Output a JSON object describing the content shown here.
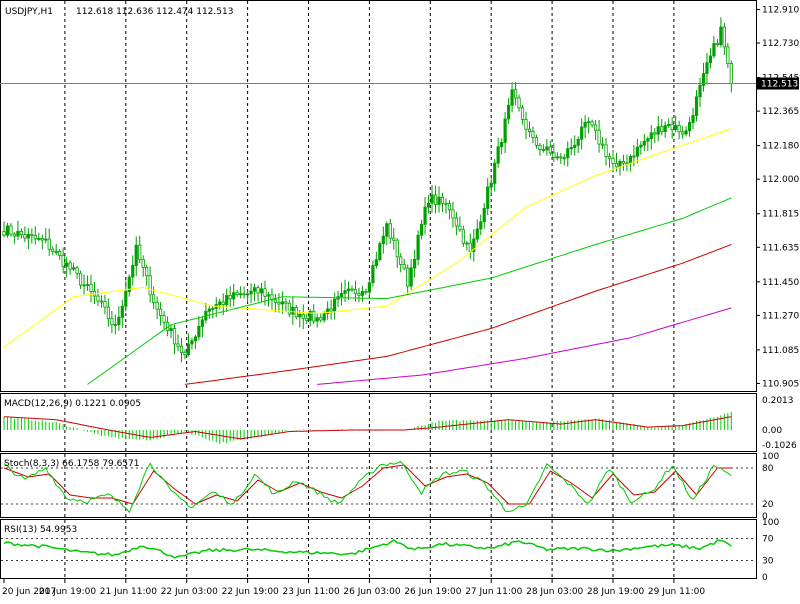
{
  "chart_data": [
    {
      "type": "candlestick",
      "symbol_label": "USDJPY,H1",
      "ohlc_label": "112.618 112.636 112.474 112.513",
      "current_price_label": "112.513",
      "ylim": [
        110.87,
        112.95
      ],
      "y_ticks": [
        "112.910",
        "112.730",
        "112.545",
        "112.365",
        "112.180",
        "112.000",
        "111.815",
        "111.635",
        "111.450",
        "111.270",
        "111.085",
        "110.905"
      ],
      "x_ticks": [
        "20 Jun 2017",
        "20 Jun 19:00",
        "21 Jun 11:00",
        "22 Jun 03:00",
        "22 Jun 19:00",
        "23 Jun 11:00",
        "26 Jun 03:00",
        "26 Jun 19:00",
        "27 Jun 11:00",
        "28 Jun 03:00",
        "28 Jun 19:00",
        "29 Jun 11:00"
      ],
      "colors": {
        "up": "#00a000",
        "down": "#00a000",
        "ma_fast": "#ffff00",
        "ma_mid": "#00cc00",
        "ma_slow": "#cc0000",
        "ma_slowest": "#cc00cc"
      },
      "close_anchors": [
        [
          0,
          111.73
        ],
        [
          12,
          111.66
        ],
        [
          20,
          111.5
        ],
        [
          28,
          111.32
        ],
        [
          32,
          111.2
        ],
        [
          38,
          111.62
        ],
        [
          44,
          111.3
        ],
        [
          52,
          111.05
        ],
        [
          58,
          111.3
        ],
        [
          66,
          111.37
        ],
        [
          74,
          111.4
        ],
        [
          82,
          111.3
        ],
        [
          90,
          111.25
        ],
        [
          98,
          111.38
        ],
        [
          104,
          111.42
        ],
        [
          110,
          111.75
        ],
        [
          116,
          111.45
        ],
        [
          122,
          111.9
        ],
        [
          128,
          111.85
        ],
        [
          134,
          111.6
        ],
        [
          140,
          112.0
        ],
        [
          146,
          112.45
        ],
        [
          152,
          112.2
        ],
        [
          160,
          112.1
        ],
        [
          168,
          112.3
        ],
        [
          176,
          112.05
        ],
        [
          184,
          112.2
        ],
        [
          190,
          112.3
        ],
        [
          196,
          112.25
        ],
        [
          202,
          112.6
        ],
        [
          206,
          112.8
        ],
        [
          209,
          112.51
        ]
      ],
      "ma_fast_anchors": [
        [
          0,
          111.1
        ],
        [
          20,
          111.37
        ],
        [
          40,
          111.42
        ],
        [
          60,
          111.32
        ],
        [
          90,
          111.28
        ],
        [
          110,
          111.32
        ],
        [
          130,
          111.55
        ],
        [
          150,
          111.85
        ],
        [
          170,
          112.02
        ],
        [
          190,
          112.15
        ],
        [
          209,
          112.27
        ]
      ],
      "ma_mid_anchors": [
        [
          24,
          110.9
        ],
        [
          48,
          111.22
        ],
        [
          80,
          111.37
        ],
        [
          110,
          111.36
        ],
        [
          140,
          111.47
        ],
        [
          170,
          111.65
        ],
        [
          195,
          111.79
        ],
        [
          209,
          111.9
        ]
      ],
      "ma_slow_anchors": [
        [
          52,
          110.9
        ],
        [
          80,
          110.97
        ],
        [
          110,
          111.05
        ],
        [
          140,
          111.2
        ],
        [
          170,
          111.4
        ],
        [
          195,
          111.55
        ],
        [
          209,
          111.65
        ]
      ],
      "ma_slowest_anchors": [
        [
          90,
          110.9
        ],
        [
          120,
          110.95
        ],
        [
          150,
          111.04
        ],
        [
          180,
          111.15
        ],
        [
          209,
          111.31
        ]
      ]
    },
    {
      "type": "histogram",
      "label": "MACD(12,26,9) 0.1221 0.0905",
      "ylim": [
        -0.135,
        0.23
      ],
      "y_ticks": [
        "0.2013",
        "0.00",
        "-0.1026"
      ],
      "signal_color": "#cc0000",
      "hist_color": "#00cc00",
      "macd_anchors": [
        [
          0,
          0.09
        ],
        [
          15,
          0.05
        ],
        [
          30,
          -0.05
        ],
        [
          42,
          -0.07
        ],
        [
          52,
          -0.01
        ],
        [
          62,
          -0.09
        ],
        [
          70,
          -0.06
        ],
        [
          82,
          0.0
        ],
        [
          100,
          0.0
        ],
        [
          115,
          0.0
        ],
        [
          125,
          0.06
        ],
        [
          145,
          0.07
        ],
        [
          155,
          0.05
        ],
        [
          170,
          0.08
        ],
        [
          185,
          0.02
        ],
        [
          195,
          0.03
        ],
        [
          209,
          0.12
        ]
      ],
      "signal_anchors": [
        [
          0,
          0.09
        ],
        [
          15,
          0.07
        ],
        [
          30,
          0.0
        ],
        [
          42,
          -0.05
        ],
        [
          55,
          -0.01
        ],
        [
          68,
          -0.06
        ],
        [
          82,
          -0.01
        ],
        [
          100,
          0.0
        ],
        [
          115,
          0.0
        ],
        [
          125,
          0.02
        ],
        [
          145,
          0.07
        ],
        [
          160,
          0.04
        ],
        [
          170,
          0.07
        ],
        [
          185,
          0.02
        ],
        [
          195,
          0.03
        ],
        [
          209,
          0.09
        ]
      ]
    },
    {
      "type": "line",
      "label": "Stoch(8,3,3) 66.1758 79.6571",
      "ylim": [
        0,
        100
      ],
      "y_ticks": [
        "100",
        "80",
        "20",
        "0"
      ],
      "levels": [
        80,
        20
      ],
      "k_color": "#00cc00",
      "d_color": "#cc0000",
      "k_anchors": [
        [
          0,
          85
        ],
        [
          6,
          60
        ],
        [
          12,
          80
        ],
        [
          18,
          30
        ],
        [
          24,
          25
        ],
        [
          30,
          35
        ],
        [
          36,
          10
        ],
        [
          42,
          90
        ],
        [
          48,
          40
        ],
        [
          54,
          15
        ],
        [
          60,
          40
        ],
        [
          66,
          20
        ],
        [
          72,
          70
        ],
        [
          78,
          35
        ],
        [
          84,
          60
        ],
        [
          90,
          40
        ],
        [
          96,
          20
        ],
        [
          102,
          55
        ],
        [
          108,
          85
        ],
        [
          114,
          90
        ],
        [
          120,
          40
        ],
        [
          126,
          70
        ],
        [
          132,
          75
        ],
        [
          138,
          55
        ],
        [
          144,
          10
        ],
        [
          150,
          15
        ],
        [
          156,
          85
        ],
        [
          162,
          55
        ],
        [
          168,
          20
        ],
        [
          174,
          80
        ],
        [
          180,
          25
        ],
        [
          186,
          40
        ],
        [
          192,
          85
        ],
        [
          198,
          25
        ],
        [
          204,
          85
        ],
        [
          209,
          66
        ]
      ],
      "d_anchors": [
        [
          0,
          80
        ],
        [
          7,
          65
        ],
        [
          13,
          70
        ],
        [
          19,
          35
        ],
        [
          25,
          30
        ],
        [
          31,
          30
        ],
        [
          37,
          20
        ],
        [
          43,
          75
        ],
        [
          49,
          45
        ],
        [
          55,
          20
        ],
        [
          61,
          35
        ],
        [
          67,
          25
        ],
        [
          73,
          60
        ],
        [
          79,
          40
        ],
        [
          85,
          55
        ],
        [
          91,
          40
        ],
        [
          97,
          30
        ],
        [
          103,
          50
        ],
        [
          109,
          80
        ],
        [
          115,
          85
        ],
        [
          121,
          50
        ],
        [
          127,
          65
        ],
        [
          133,
          70
        ],
        [
          139,
          55
        ],
        [
          145,
          20
        ],
        [
          151,
          20
        ],
        [
          157,
          75
        ],
        [
          163,
          55
        ],
        [
          169,
          30
        ],
        [
          175,
          70
        ],
        [
          181,
          35
        ],
        [
          187,
          40
        ],
        [
          193,
          75
        ],
        [
          199,
          35
        ],
        [
          205,
          80
        ],
        [
          209,
          80
        ]
      ]
    },
    {
      "type": "line",
      "label": "RSI(13) 54.9953",
      "ylim": [
        0,
        100
      ],
      "y_ticks": [
        "100",
        "70",
        "30",
        "0"
      ],
      "levels": [
        70,
        30
      ],
      "line_color": "#00cc00",
      "rsi_anchors": [
        [
          0,
          62
        ],
        [
          12,
          55
        ],
        [
          22,
          45
        ],
        [
          32,
          40
        ],
        [
          40,
          58
        ],
        [
          50,
          35
        ],
        [
          58,
          48
        ],
        [
          70,
          50
        ],
        [
          85,
          45
        ],
        [
          100,
          42
        ],
        [
          112,
          65
        ],
        [
          118,
          50
        ],
        [
          126,
          60
        ],
        [
          134,
          55
        ],
        [
          140,
          52
        ],
        [
          148,
          65
        ],
        [
          156,
          50
        ],
        [
          166,
          52
        ],
        [
          176,
          48
        ],
        [
          184,
          55
        ],
        [
          192,
          58
        ],
        [
          200,
          52
        ],
        [
          206,
          67
        ],
        [
          209,
          55
        ]
      ]
    }
  ]
}
